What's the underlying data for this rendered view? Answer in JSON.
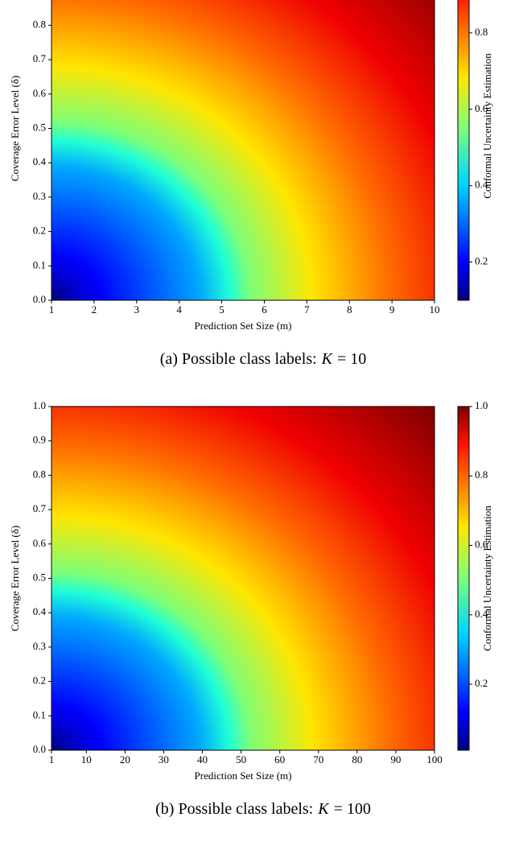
{
  "chart_data": [
    {
      "type": "heatmap",
      "xlabel": "Prediction Set Size (m)",
      "ylabel": "Coverage Error Level (δ)",
      "xlim": [
        1,
        10
      ],
      "xticks": [
        1,
        2,
        3,
        4,
        5,
        6,
        7,
        8,
        9,
        10
      ],
      "ylim": [
        0,
        1
      ],
      "yticks": [
        {
          "value": 0,
          "label": "0.0"
        },
        0.1,
        0.2,
        0.3,
        0.4,
        0.5,
        0.6,
        0.7,
        0.8
      ],
      "colorbar": {
        "label": "Conformal Uncertainty Estimation",
        "lim": [
          0.1,
          1.0
        ],
        "ticks": [
          0.2,
          0.4,
          0.6,
          0.8
        ]
      },
      "caption": "(a) Possible class labels:",
      "caption_var": "K",
      "caption_value": "= 10"
    },
    {
      "type": "heatmap",
      "xlabel": "Prediction Set Size (m)",
      "ylabel": "Coverage Error Level (δ)",
      "xlim": [
        1,
        100
      ],
      "xticks": [
        1,
        10,
        20,
        30,
        40,
        50,
        60,
        70,
        80,
        90,
        100
      ],
      "ylim": [
        0,
        1
      ],
      "yticks": [
        {
          "value": 0,
          "label": "0.0"
        },
        0.1,
        0.2,
        0.3,
        0.4,
        0.5,
        0.6,
        0.7,
        0.8,
        0.9,
        {
          "value": 1,
          "label": "1.0"
        }
      ],
      "colorbar": {
        "label": "Conformal Uncertainty Estimation",
        "lim": [
          0.01,
          1.0
        ],
        "ticks": [
          0.2,
          0.4,
          0.6,
          0.8,
          {
            "value": 1,
            "label": "1.0"
          }
        ]
      },
      "caption": "(b) Possible class labels:",
      "caption_var": "K",
      "caption_value": "= 100"
    }
  ]
}
